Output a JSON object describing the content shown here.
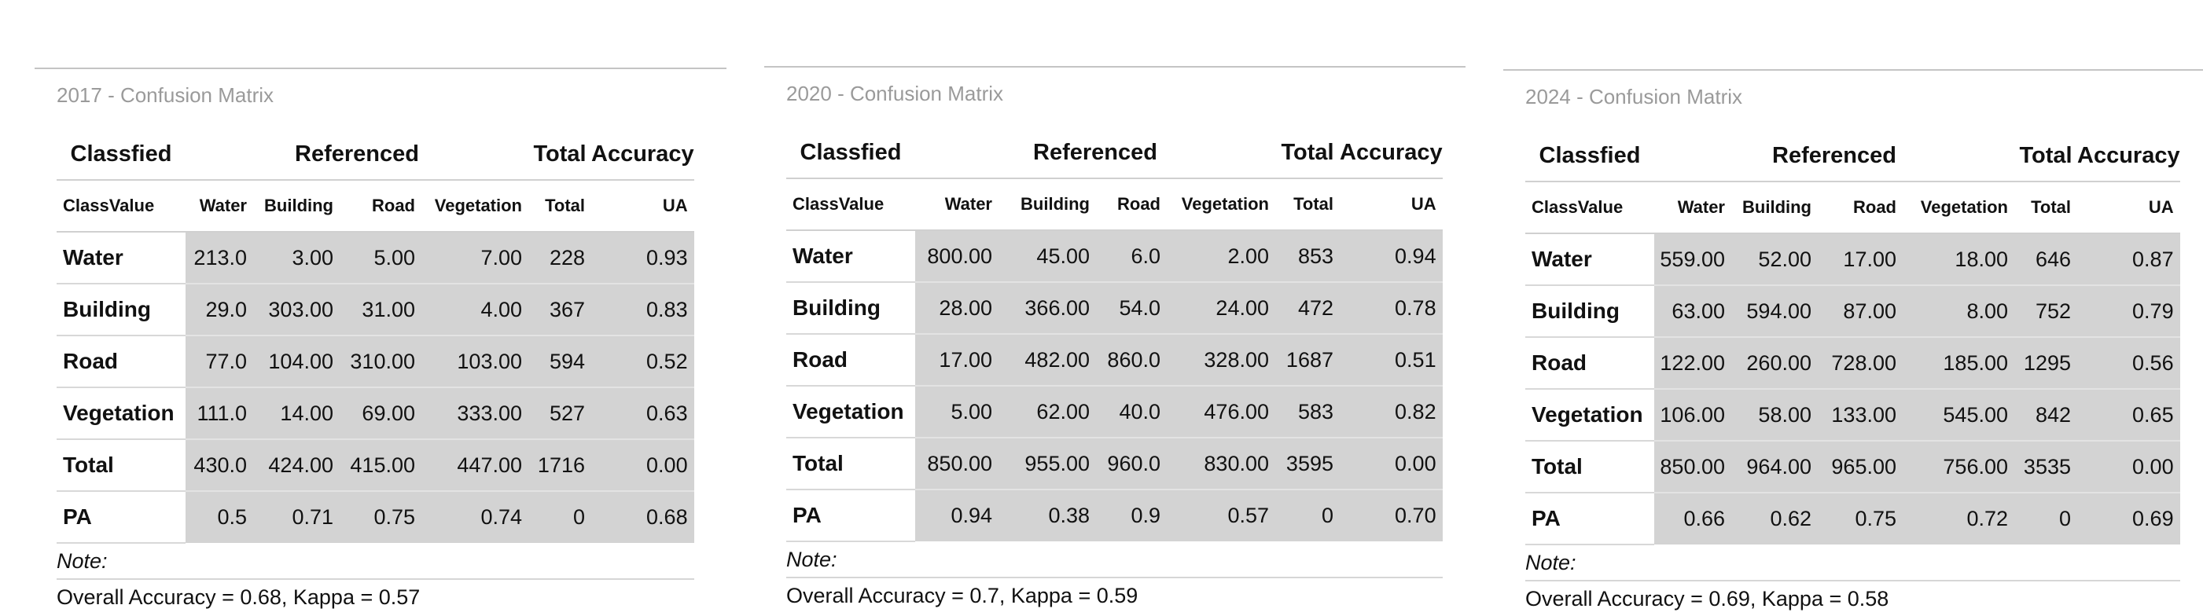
{
  "panels": [
    {
      "title": "2017 - Confusion Matrix",
      "header": {
        "classified": "Classfied",
        "referenced": "Referenced",
        "total": "Total",
        "accuracy": "Accuracy"
      },
      "subheader": {
        "classvalue": "ClassValue",
        "water": "Water",
        "building": "Building",
        "road": "Road",
        "vegetation": "Vegetation",
        "total": "Total",
        "ua": "UA"
      },
      "rows": [
        {
          "label": "Water",
          "cells": [
            "213.0",
            "3.00",
            "5.00",
            "7.00",
            "228",
            "0.93"
          ]
        },
        {
          "label": "Building",
          "cells": [
            "29.0",
            "303.00",
            "31.00",
            "4.00",
            "367",
            "0.83"
          ]
        },
        {
          "label": "Road",
          "cells": [
            "77.0",
            "104.00",
            "310.00",
            "103.00",
            "594",
            "0.52"
          ]
        },
        {
          "label": "Vegetation",
          "cells": [
            "111.0",
            "14.00",
            "69.00",
            "333.00",
            "527",
            "0.63"
          ]
        },
        {
          "label": "Total",
          "cells": [
            "430.0",
            "424.00",
            "415.00",
            "447.00",
            "1716",
            "0.00"
          ]
        },
        {
          "label": "PA",
          "cells": [
            "0.5",
            "0.71",
            "0.75",
            "0.74",
            "0",
            "0.68"
          ]
        }
      ],
      "note": "Note:",
      "footer": "Overall Accuracy = 0.68, Kappa = 0.57"
    },
    {
      "title": "2020 - Confusion Matrix",
      "header": {
        "classified": "Classfied",
        "referenced": "Referenced",
        "total": "Total",
        "accuracy": "Accuracy"
      },
      "subheader": {
        "classvalue": "ClassValue",
        "water": "Water",
        "building": "Building",
        "road": "Road",
        "vegetation": "Vegetation",
        "total": "Total",
        "ua": "UA"
      },
      "rows": [
        {
          "label": "Water",
          "cells": [
            "800.00",
            "45.00",
            "6.0",
            "2.00",
            "853",
            "0.94"
          ]
        },
        {
          "label": "Building",
          "cells": [
            "28.00",
            "366.00",
            "54.0",
            "24.00",
            "472",
            "0.78"
          ]
        },
        {
          "label": "Road",
          "cells": [
            "17.00",
            "482.00",
            "860.0",
            "328.00",
            "1687",
            "0.51"
          ]
        },
        {
          "label": "Vegetation",
          "cells": [
            "5.00",
            "62.00",
            "40.0",
            "476.00",
            "583",
            "0.82"
          ]
        },
        {
          "label": "Total",
          "cells": [
            "850.00",
            "955.00",
            "960.0",
            "830.00",
            "3595",
            "0.00"
          ]
        },
        {
          "label": "PA",
          "cells": [
            "0.94",
            "0.38",
            "0.9",
            "0.57",
            "0",
            "0.70"
          ]
        }
      ],
      "note": "Note:",
      "footer": "Overall Accuracy = 0.7, Kappa = 0.59"
    },
    {
      "title": "2024 - Confusion Matrix",
      "header": {
        "classified": "Classfied",
        "referenced": "Referenced",
        "total": "Total",
        "accuracy": "Accuracy"
      },
      "subheader": {
        "classvalue": "ClassValue",
        "water": "Water",
        "building": "Building",
        "road": "Road",
        "vegetation": "Vegetation",
        "total": "Total",
        "ua": "UA"
      },
      "rows": [
        {
          "label": "Water",
          "cells": [
            "559.00",
            "52.00",
            "17.00",
            "18.00",
            "646",
            "0.87"
          ]
        },
        {
          "label": "Building",
          "cells": [
            "63.00",
            "594.00",
            "87.00",
            "8.00",
            "752",
            "0.79"
          ]
        },
        {
          "label": "Road",
          "cells": [
            "122.00",
            "260.00",
            "728.00",
            "185.00",
            "1295",
            "0.56"
          ]
        },
        {
          "label": "Vegetation",
          "cells": [
            "106.00",
            "58.00",
            "133.00",
            "545.00",
            "842",
            "0.65"
          ]
        },
        {
          "label": "Total",
          "cells": [
            "850.00",
            "964.00",
            "965.00",
            "756.00",
            "3535",
            "0.00"
          ]
        },
        {
          "label": "PA",
          "cells": [
            "0.66",
            "0.62",
            "0.75",
            "0.72",
            "0",
            "0.69"
          ]
        }
      ],
      "note": "Note:",
      "footer": "Overall Accuracy = 0.69, Kappa = 0.58"
    }
  ]
}
